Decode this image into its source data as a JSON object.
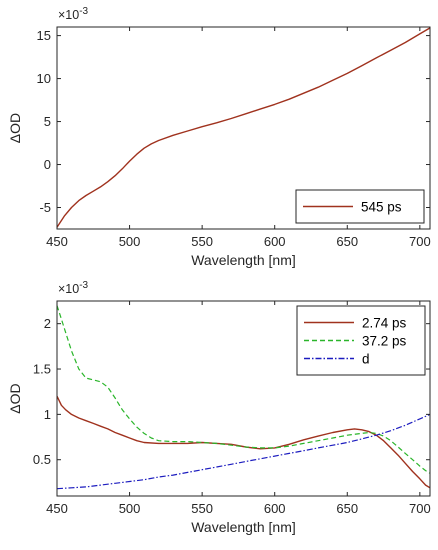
{
  "chart_data": [
    {
      "type": "line",
      "panel": "top",
      "xlabel": "Wavelength [nm]",
      "ylabel": "ΔOD",
      "y_multiplier": "×10",
      "y_multiplier_exp": "-3",
      "xlim": [
        450,
        707
      ],
      "ylim": [
        -7.5,
        16
      ],
      "xticks": [
        450,
        500,
        550,
        600,
        650,
        700
      ],
      "yticks": [
        -5,
        0,
        5,
        10,
        15
      ],
      "grid": false,
      "legend_position": "bottom-right",
      "series": [
        {
          "name": "545 ps",
          "color": "#a0321e",
          "style": "solid",
          "x": [
            450,
            455,
            460,
            465,
            470,
            475,
            480,
            485,
            490,
            495,
            500,
            505,
            510,
            515,
            520,
            530,
            540,
            550,
            560,
            570,
            580,
            590,
            600,
            610,
            620,
            630,
            640,
            650,
            660,
            670,
            680,
            690,
            700,
            707
          ],
          "y": [
            -7.3,
            -6.0,
            -5.0,
            -4.2,
            -3.6,
            -3.1,
            -2.6,
            -2.0,
            -1.3,
            -0.5,
            0.4,
            1.2,
            1.9,
            2.4,
            2.8,
            3.4,
            3.9,
            4.4,
            4.85,
            5.35,
            5.9,
            6.45,
            7.0,
            7.6,
            8.3,
            9.0,
            9.8,
            10.6,
            11.5,
            12.4,
            13.3,
            14.2,
            15.2,
            15.9
          ]
        }
      ]
    },
    {
      "type": "line",
      "panel": "bottom",
      "xlabel": "Wavelength [nm]",
      "ylabel": "ΔOD",
      "y_multiplier": "×10",
      "y_multiplier_exp": "-3",
      "xlim": [
        450,
        707
      ],
      "ylim": [
        0.1,
        2.25
      ],
      "xticks": [
        450,
        500,
        550,
        600,
        650,
        700
      ],
      "yticks": [
        0.5,
        1,
        1.5,
        2
      ],
      "ytick_labels": [
        "0.5",
        "1",
        "1.5",
        "2"
      ],
      "grid": false,
      "legend_position": "top-right",
      "series": [
        {
          "name": "2.74 ps",
          "color": "#a0321e",
          "style": "solid",
          "x": [
            450,
            453,
            456,
            460,
            465,
            470,
            475,
            480,
            485,
            490,
            495,
            500,
            505,
            510,
            520,
            530,
            540,
            550,
            560,
            570,
            580,
            590,
            600,
            610,
            620,
            630,
            640,
            650,
            655,
            660,
            665,
            670,
            675,
            680,
            685,
            690,
            695,
            700,
            704,
            707
          ],
          "y": [
            1.2,
            1.1,
            1.05,
            1.0,
            0.96,
            0.93,
            0.9,
            0.87,
            0.84,
            0.8,
            0.77,
            0.74,
            0.71,
            0.69,
            0.68,
            0.68,
            0.68,
            0.69,
            0.68,
            0.67,
            0.64,
            0.62,
            0.63,
            0.67,
            0.72,
            0.76,
            0.8,
            0.83,
            0.84,
            0.83,
            0.81,
            0.77,
            0.71,
            0.63,
            0.55,
            0.46,
            0.37,
            0.29,
            0.22,
            0.19
          ]
        },
        {
          "name": "37.2 ps",
          "color": "#2ab52a",
          "style": "dashed",
          "x": [
            450,
            453,
            456,
            460,
            465,
            470,
            475,
            480,
            485,
            490,
            495,
            500,
            505,
            510,
            515,
            520,
            530,
            540,
            550,
            560,
            570,
            580,
            590,
            600,
            610,
            620,
            630,
            640,
            650,
            660,
            665,
            670,
            675,
            680,
            685,
            690,
            695,
            700,
            704,
            707
          ],
          "y": [
            2.2,
            2.05,
            1.9,
            1.7,
            1.5,
            1.4,
            1.38,
            1.36,
            1.3,
            1.18,
            1.05,
            0.95,
            0.86,
            0.79,
            0.74,
            0.71,
            0.7,
            0.7,
            0.69,
            0.68,
            0.66,
            0.64,
            0.63,
            0.63,
            0.65,
            0.68,
            0.71,
            0.74,
            0.77,
            0.79,
            0.8,
            0.79,
            0.76,
            0.71,
            0.64,
            0.57,
            0.5,
            0.43,
            0.38,
            0.35
          ]
        },
        {
          "name": "d",
          "color": "#1c1cbf",
          "style": "dashdot",
          "x": [
            450,
            460,
            470,
            480,
            490,
            500,
            510,
            520,
            530,
            540,
            550,
            560,
            570,
            580,
            590,
            600,
            610,
            620,
            630,
            640,
            650,
            660,
            670,
            680,
            690,
            700,
            707
          ],
          "y": [
            0.18,
            0.19,
            0.2,
            0.22,
            0.24,
            0.26,
            0.28,
            0.31,
            0.33,
            0.36,
            0.39,
            0.42,
            0.45,
            0.48,
            0.51,
            0.54,
            0.57,
            0.6,
            0.63,
            0.66,
            0.69,
            0.73,
            0.77,
            0.82,
            0.88,
            0.95,
            1.0
          ]
        }
      ]
    }
  ]
}
